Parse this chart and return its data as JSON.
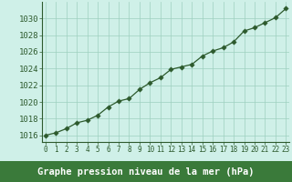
{
  "x": [
    0,
    1,
    2,
    3,
    4,
    5,
    6,
    7,
    8,
    9,
    10,
    11,
    12,
    13,
    14,
    15,
    16,
    17,
    18,
    19,
    20,
    21,
    22,
    23
  ],
  "y": [
    1016.0,
    1016.3,
    1016.8,
    1017.5,
    1017.8,
    1018.4,
    1019.4,
    1020.1,
    1020.4,
    1021.5,
    1022.3,
    1022.9,
    1023.9,
    1024.2,
    1024.5,
    1025.5,
    1026.1,
    1026.5,
    1027.2,
    1028.5,
    1028.9,
    1029.5,
    1030.1,
    1031.2
  ],
  "line_color": "#2d5a2d",
  "marker_color": "#2d5a2d",
  "bg_plot": "#cff0e8",
  "bg_fig": "#cff0e8",
  "bg_label_strip": "#3a7a3a",
  "grid_color": "#9ecfbf",
  "xlabel": "Graphe pression niveau de la mer (hPa)",
  "xlabel_color": "#ffffff",
  "ylabel_ticks": [
    1016,
    1018,
    1020,
    1022,
    1024,
    1026,
    1028,
    1030
  ],
  "xtick_labels": [
    "0",
    "1",
    "2",
    "3",
    "4",
    "5",
    "6",
    "7",
    "8",
    "9",
    "10",
    "11",
    "12",
    "13",
    "14",
    "15",
    "16",
    "17",
    "18",
    "19",
    "20",
    "21",
    "22",
    "23"
  ],
  "ylim": [
    1015.2,
    1032.0
  ],
  "xlim": [
    -0.3,
    23.3
  ],
  "tick_color": "#2d5a2d",
  "label_fontsize": 6.5,
  "xlabel_fontsize": 7.5,
  "spine_color": "#2d5a2d"
}
